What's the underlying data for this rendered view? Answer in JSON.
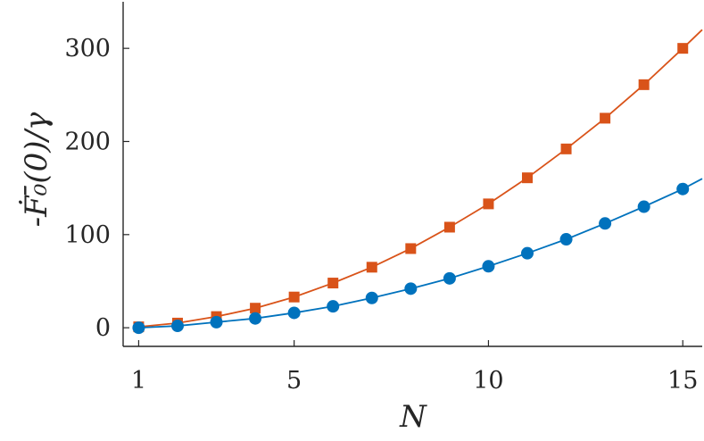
{
  "chart_data": {
    "type": "line",
    "xlabel": "N",
    "ylabel": "-Ḟ₀̄(0)/γ",
    "xlim": [
      0.6,
      15.5
    ],
    "ylim": [
      -20,
      350
    ],
    "xticks": [
      1,
      5,
      10,
      15
    ],
    "yticks": [
      0,
      100,
      200,
      300
    ],
    "grid": false,
    "legend": "none",
    "series": [
      {
        "color": "#d95319",
        "marker": "square",
        "x": [
          1,
          2,
          3,
          4,
          5,
          6,
          7,
          8,
          9,
          10,
          11,
          12,
          13,
          14,
          15
        ],
        "y": [
          1,
          5,
          12,
          21,
          33,
          48,
          65,
          85,
          108,
          133,
          161,
          192,
          225,
          261,
          300
        ],
        "line_extends_to": [
          15.5,
          320
        ]
      },
      {
        "color": "#0072bd",
        "marker": "circle",
        "x": [
          1,
          2,
          3,
          4,
          5,
          6,
          7,
          8,
          9,
          10,
          11,
          12,
          13,
          14,
          15
        ],
        "y": [
          0,
          2,
          6,
          10,
          16,
          23,
          32,
          42,
          53,
          66,
          80,
          95,
          112,
          130,
          149
        ],
        "line_extends_to": [
          15.5,
          160
        ]
      }
    ]
  }
}
